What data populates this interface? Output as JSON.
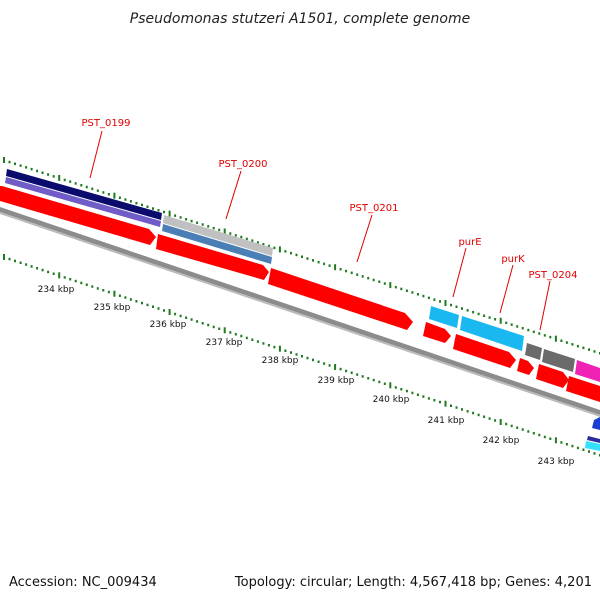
{
  "title": "Pseudomonas stutzeri A1501, complete genome",
  "accession": "Accession: NC_009434",
  "summary": "Topology: circular; Length: 4,567,418 bp; Genes: 4,201",
  "colors": {
    "cds_red": "#ff0000",
    "navy": "#0b0b6e",
    "purple": "#6f5cc7",
    "silver": "#c0c0c0",
    "steel": "#4a7fb5",
    "cyan": "#1ab8f0",
    "dark_gray": "#6b6b6b",
    "magenta": "#f022b4",
    "tick_green": "#1f7a1f",
    "backbone": "#888888",
    "label_red": "#e00000"
  },
  "gene_labels": [
    {
      "id": "PST_0199",
      "text": "PST_0199"
    },
    {
      "id": "PST_0200",
      "text": "PST_0200"
    },
    {
      "id": "PST_0201",
      "text": "PST_0201"
    },
    {
      "id": "purE",
      "text": "purE"
    },
    {
      "id": "purK",
      "text": "purK"
    },
    {
      "id": "PST_0204",
      "text": "PST_0204"
    }
  ],
  "kbp_labels": [
    "234 kbp",
    "235 kbp",
    "236 kbp",
    "237 kbp",
    "238 kbp",
    "239 kbp",
    "240 kbp",
    "241 kbp",
    "242 kbp",
    "243 kbp"
  ]
}
